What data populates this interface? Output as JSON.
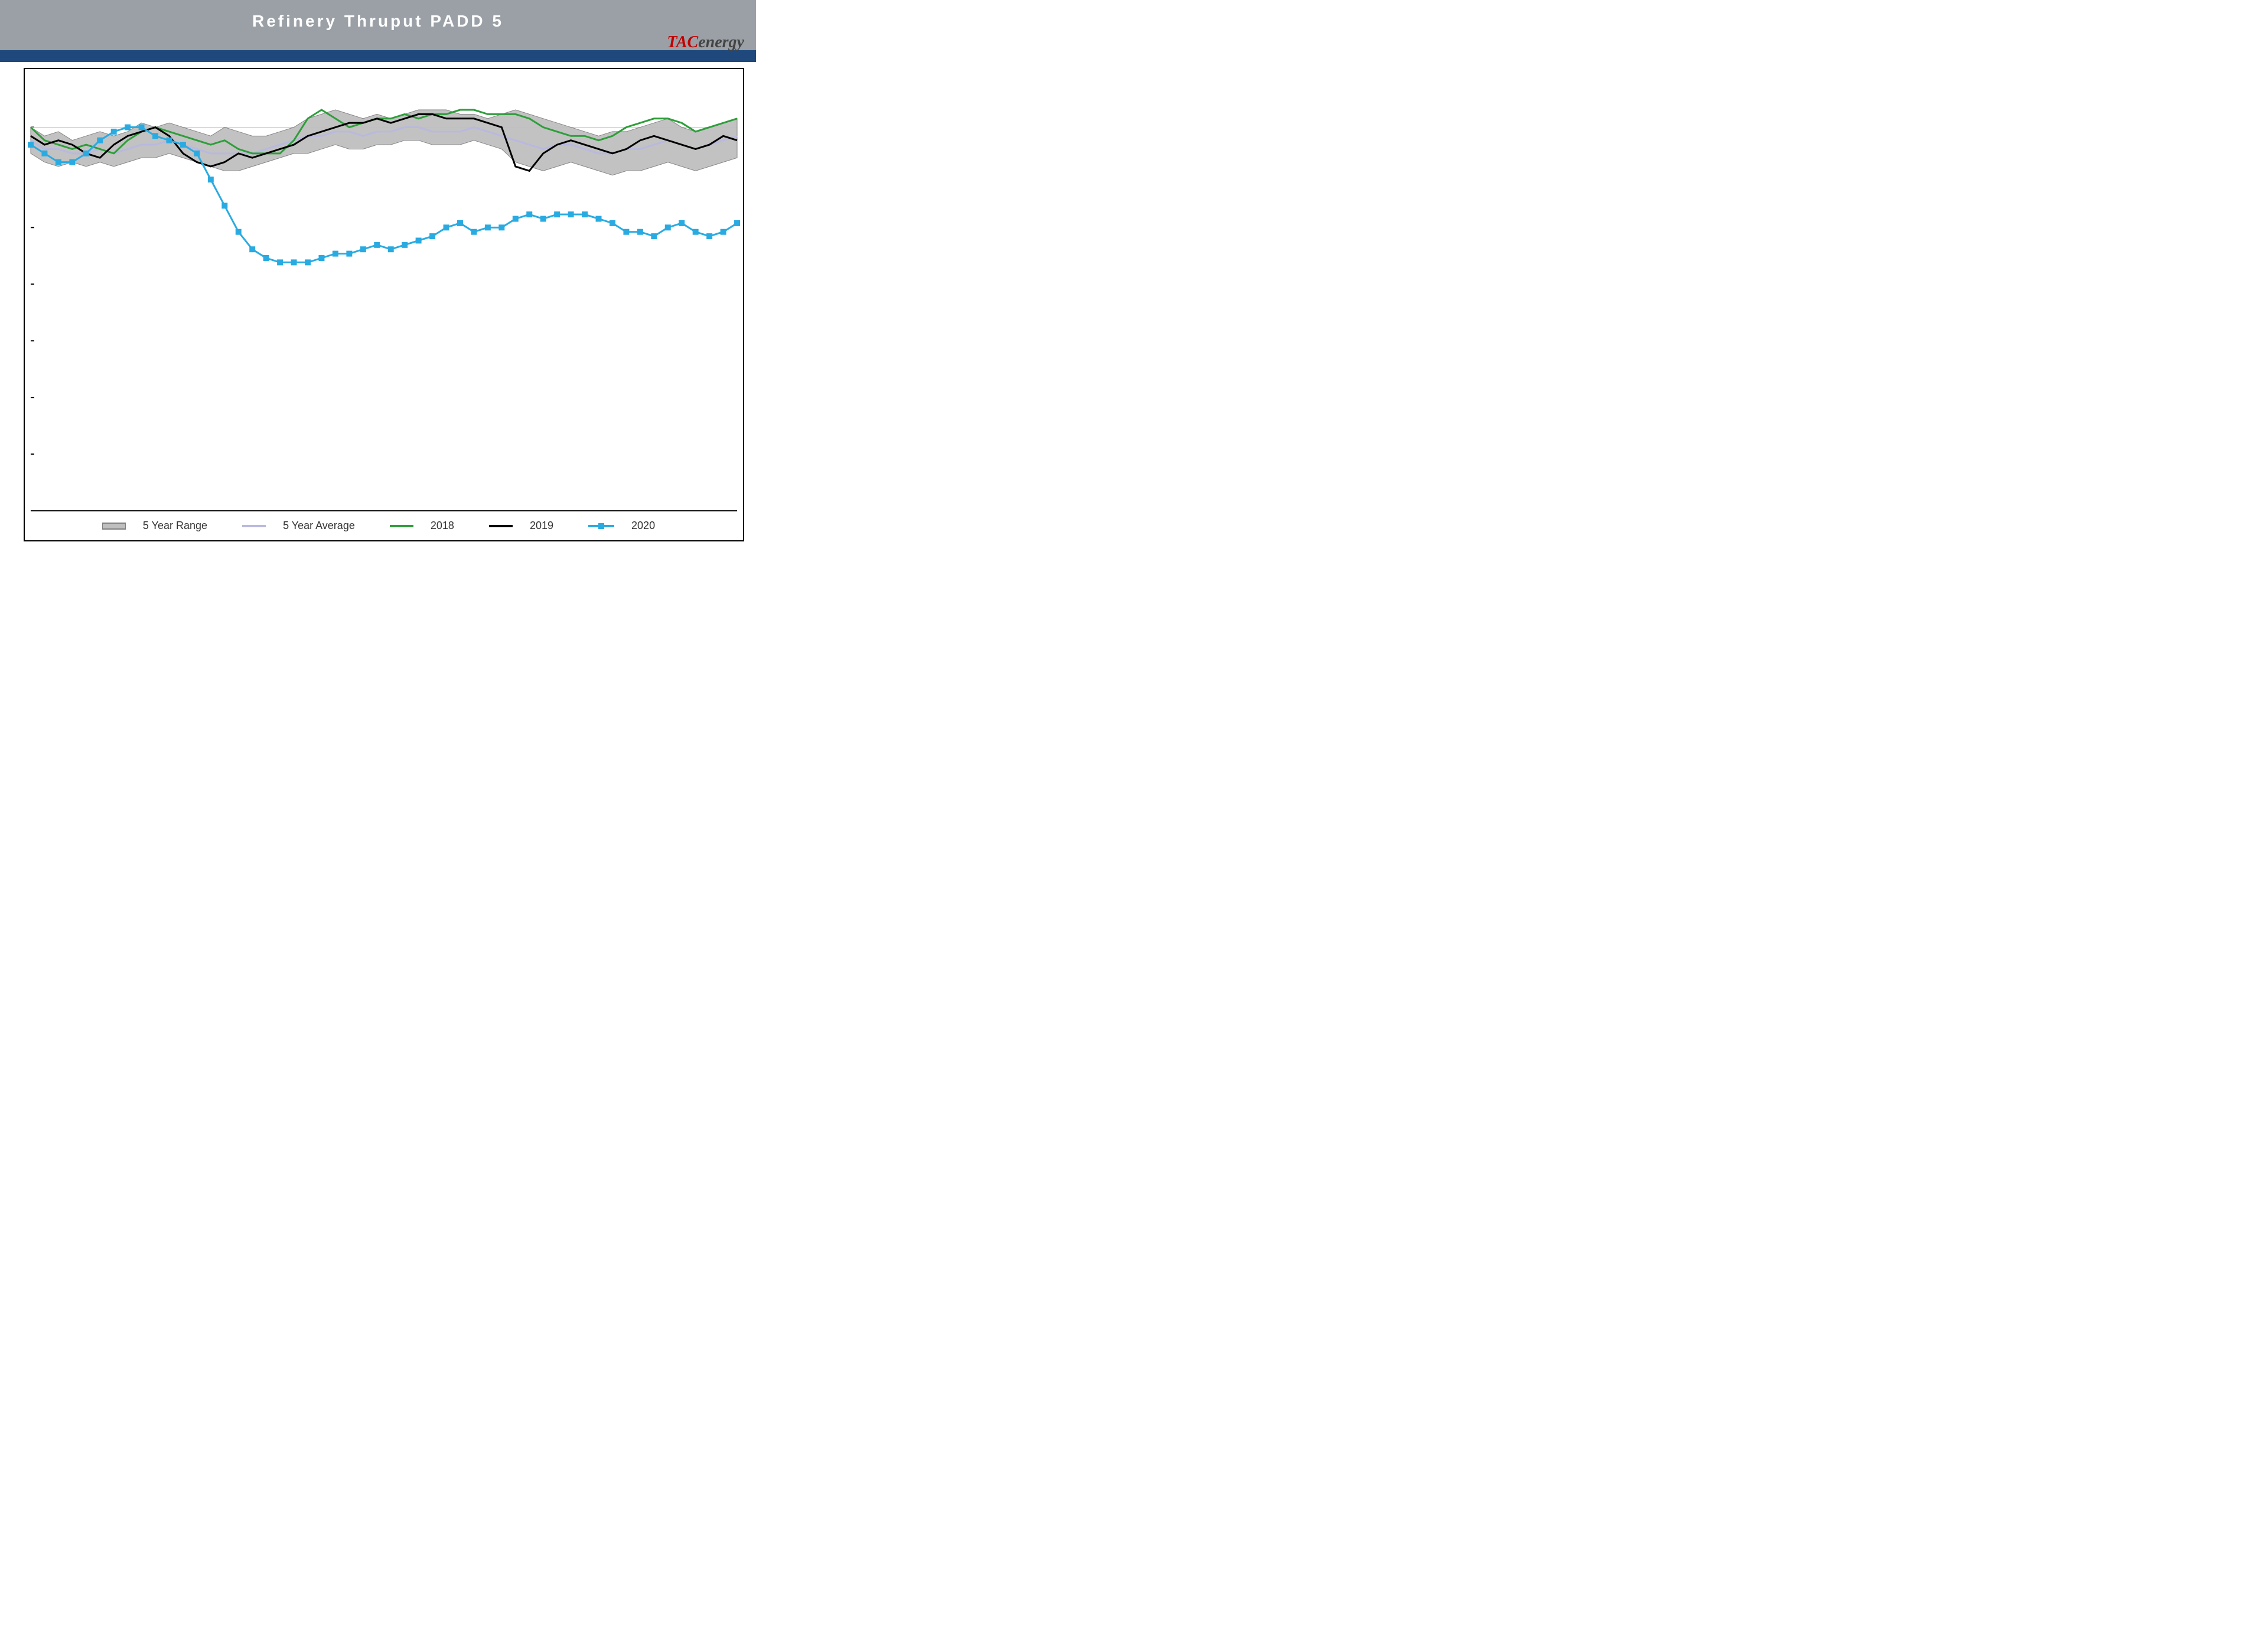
{
  "title": "Refinery Thruput PADD 5",
  "logo": {
    "tac": "TAC",
    "energy": "energy"
  },
  "legend": {
    "range": "5 Year Range",
    "avg": "5 Year Average",
    "y2018": "2018",
    "y2019": "2019",
    "y2020": "2020"
  },
  "chart": {
    "type": "line+area",
    "n_points": 52,
    "ylim": [
      0,
      100
    ],
    "gridline_y": [
      13,
      26,
      39,
      52,
      65,
      88
    ],
    "background_color": "#ffffff",
    "grid_color": "#bfbfbf",
    "axis_color": "#000000",
    "colors": {
      "range_fill": "#bfbfbf",
      "range_stroke": "#808080",
      "avg": "#b8b8e0",
      "y2018": "#2e9e3a",
      "y2019": "#000000",
      "y2020_line": "#29abe2",
      "y2020_marker": "#29abe2"
    },
    "linewidths": {
      "range": 2,
      "avg": 3,
      "y2018": 3,
      "y2019": 3,
      "y2020": 3
    },
    "marker": {
      "y2020": "square",
      "size": 10
    },
    "series": {
      "range_high": [
        88,
        86,
        87,
        85,
        86,
        87,
        86,
        87,
        89,
        88,
        89,
        88,
        87,
        86,
        88,
        87,
        86,
        86,
        87,
        88,
        90,
        91,
        92,
        91,
        90,
        91,
        90,
        91,
        92,
        92,
        92,
        91,
        91,
        90,
        91,
        92,
        91,
        90,
        89,
        88,
        87,
        86,
        87,
        87,
        88,
        89,
        90,
        88,
        87,
        88,
        89,
        90
      ],
      "range_low": [
        82,
        80,
        79,
        80,
        79,
        80,
        79,
        80,
        81,
        81,
        82,
        81,
        80,
        79,
        78,
        78,
        79,
        80,
        81,
        82,
        82,
        83,
        84,
        83,
        83,
        84,
        84,
        85,
        85,
        84,
        84,
        84,
        85,
        84,
        83,
        80,
        79,
        78,
        79,
        80,
        79,
        78,
        77,
        78,
        78,
        79,
        80,
        79,
        78,
        79,
        80,
        81
      ],
      "avg": [
        85,
        83,
        83,
        82,
        82,
        83,
        82,
        83,
        84,
        84,
        85,
        84,
        83,
        82,
        82,
        82,
        82,
        83,
        84,
        85,
        86,
        86,
        87,
        87,
        86,
        87,
        87,
        88,
        88,
        87,
        87,
        87,
        88,
        87,
        86,
        85,
        84,
        83,
        84,
        84,
        83,
        82,
        82,
        83,
        83,
        84,
        85,
        84,
        83,
        84,
        85,
        86
      ],
      "y2018": [
        88,
        85,
        84,
        83,
        84,
        83,
        82,
        85,
        87,
        88,
        87,
        86,
        85,
        84,
        85,
        83,
        82,
        82,
        82,
        85,
        90,
        92,
        90,
        88,
        89,
        90,
        90,
        91,
        90,
        91,
        91,
        92,
        92,
        91,
        91,
        91,
        90,
        88,
        87,
        86,
        86,
        85,
        86,
        88,
        89,
        90,
        90,
        89,
        87,
        88,
        89,
        90
      ],
      "y2019": [
        86,
        84,
        85,
        84,
        82,
        81,
        84,
        86,
        87,
        88,
        86,
        82,
        80,
        79,
        80,
        82,
        81,
        82,
        83,
        84,
        86,
        87,
        88,
        89,
        89,
        90,
        89,
        90,
        91,
        91,
        90,
        90,
        90,
        89,
        88,
        79,
        78,
        82,
        84,
        85,
        84,
        83,
        82,
        83,
        85,
        86,
        85,
        84,
        83,
        84,
        86,
        85
      ],
      "y2020": [
        84,
        82,
        80,
        80,
        82,
        85,
        87,
        88,
        88,
        86,
        85,
        84,
        82,
        76,
        70,
        64,
        60,
        58,
        57,
        57,
        57,
        58,
        59,
        59,
        60,
        61,
        60,
        61,
        62,
        63,
        65,
        66,
        64,
        65,
        65,
        67,
        68,
        67,
        68,
        68,
        68,
        67,
        66,
        64,
        64,
        63,
        65,
        66,
        64,
        63,
        64,
        66
      ]
    }
  }
}
